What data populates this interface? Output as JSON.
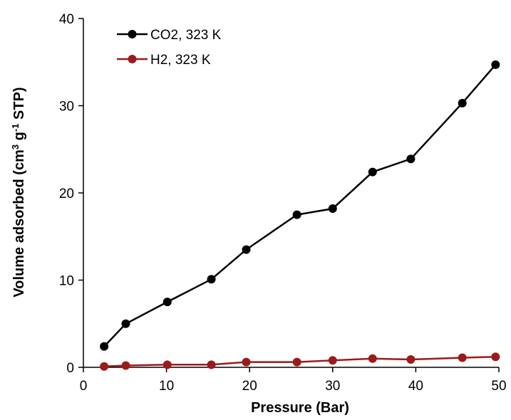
{
  "chart_data": {
    "type": "line",
    "title": "",
    "xlabel": "Pressure (Bar)",
    "ylabel": {
      "part1": "Volume adsorbed (cm",
      "sup1": "3",
      "part2": " g",
      "sup2": "-1",
      "part3": " STP)"
    },
    "xlim": [
      0,
      50
    ],
    "ylim": [
      0,
      40
    ],
    "xticks": [
      0,
      10,
      20,
      30,
      40,
      50
    ],
    "yticks": [
      0,
      10,
      20,
      30,
      40
    ],
    "grid": false,
    "legend_position": "top-left",
    "series": [
      {
        "name": "CO2, 323 K",
        "color": "#000000",
        "x": [
          2.5,
          5.1,
          10.1,
          15.4,
          19.6,
          25.7,
          30.0,
          34.8,
          39.4,
          45.6,
          49.6
        ],
        "y": [
          2.4,
          5.0,
          7.5,
          10.1,
          13.5,
          17.5,
          18.2,
          22.4,
          23.9,
          30.3,
          34.7
        ]
      },
      {
        "name": "H2, 323 K",
        "color": "#9b1b1b",
        "x": [
          2.5,
          5.1,
          10.1,
          15.4,
          19.6,
          25.7,
          30.0,
          34.8,
          39.4,
          45.6,
          49.6
        ],
        "y": [
          0.1,
          0.2,
          0.3,
          0.3,
          0.6,
          0.6,
          0.8,
          1.0,
          0.9,
          1.1,
          1.2
        ]
      }
    ]
  }
}
